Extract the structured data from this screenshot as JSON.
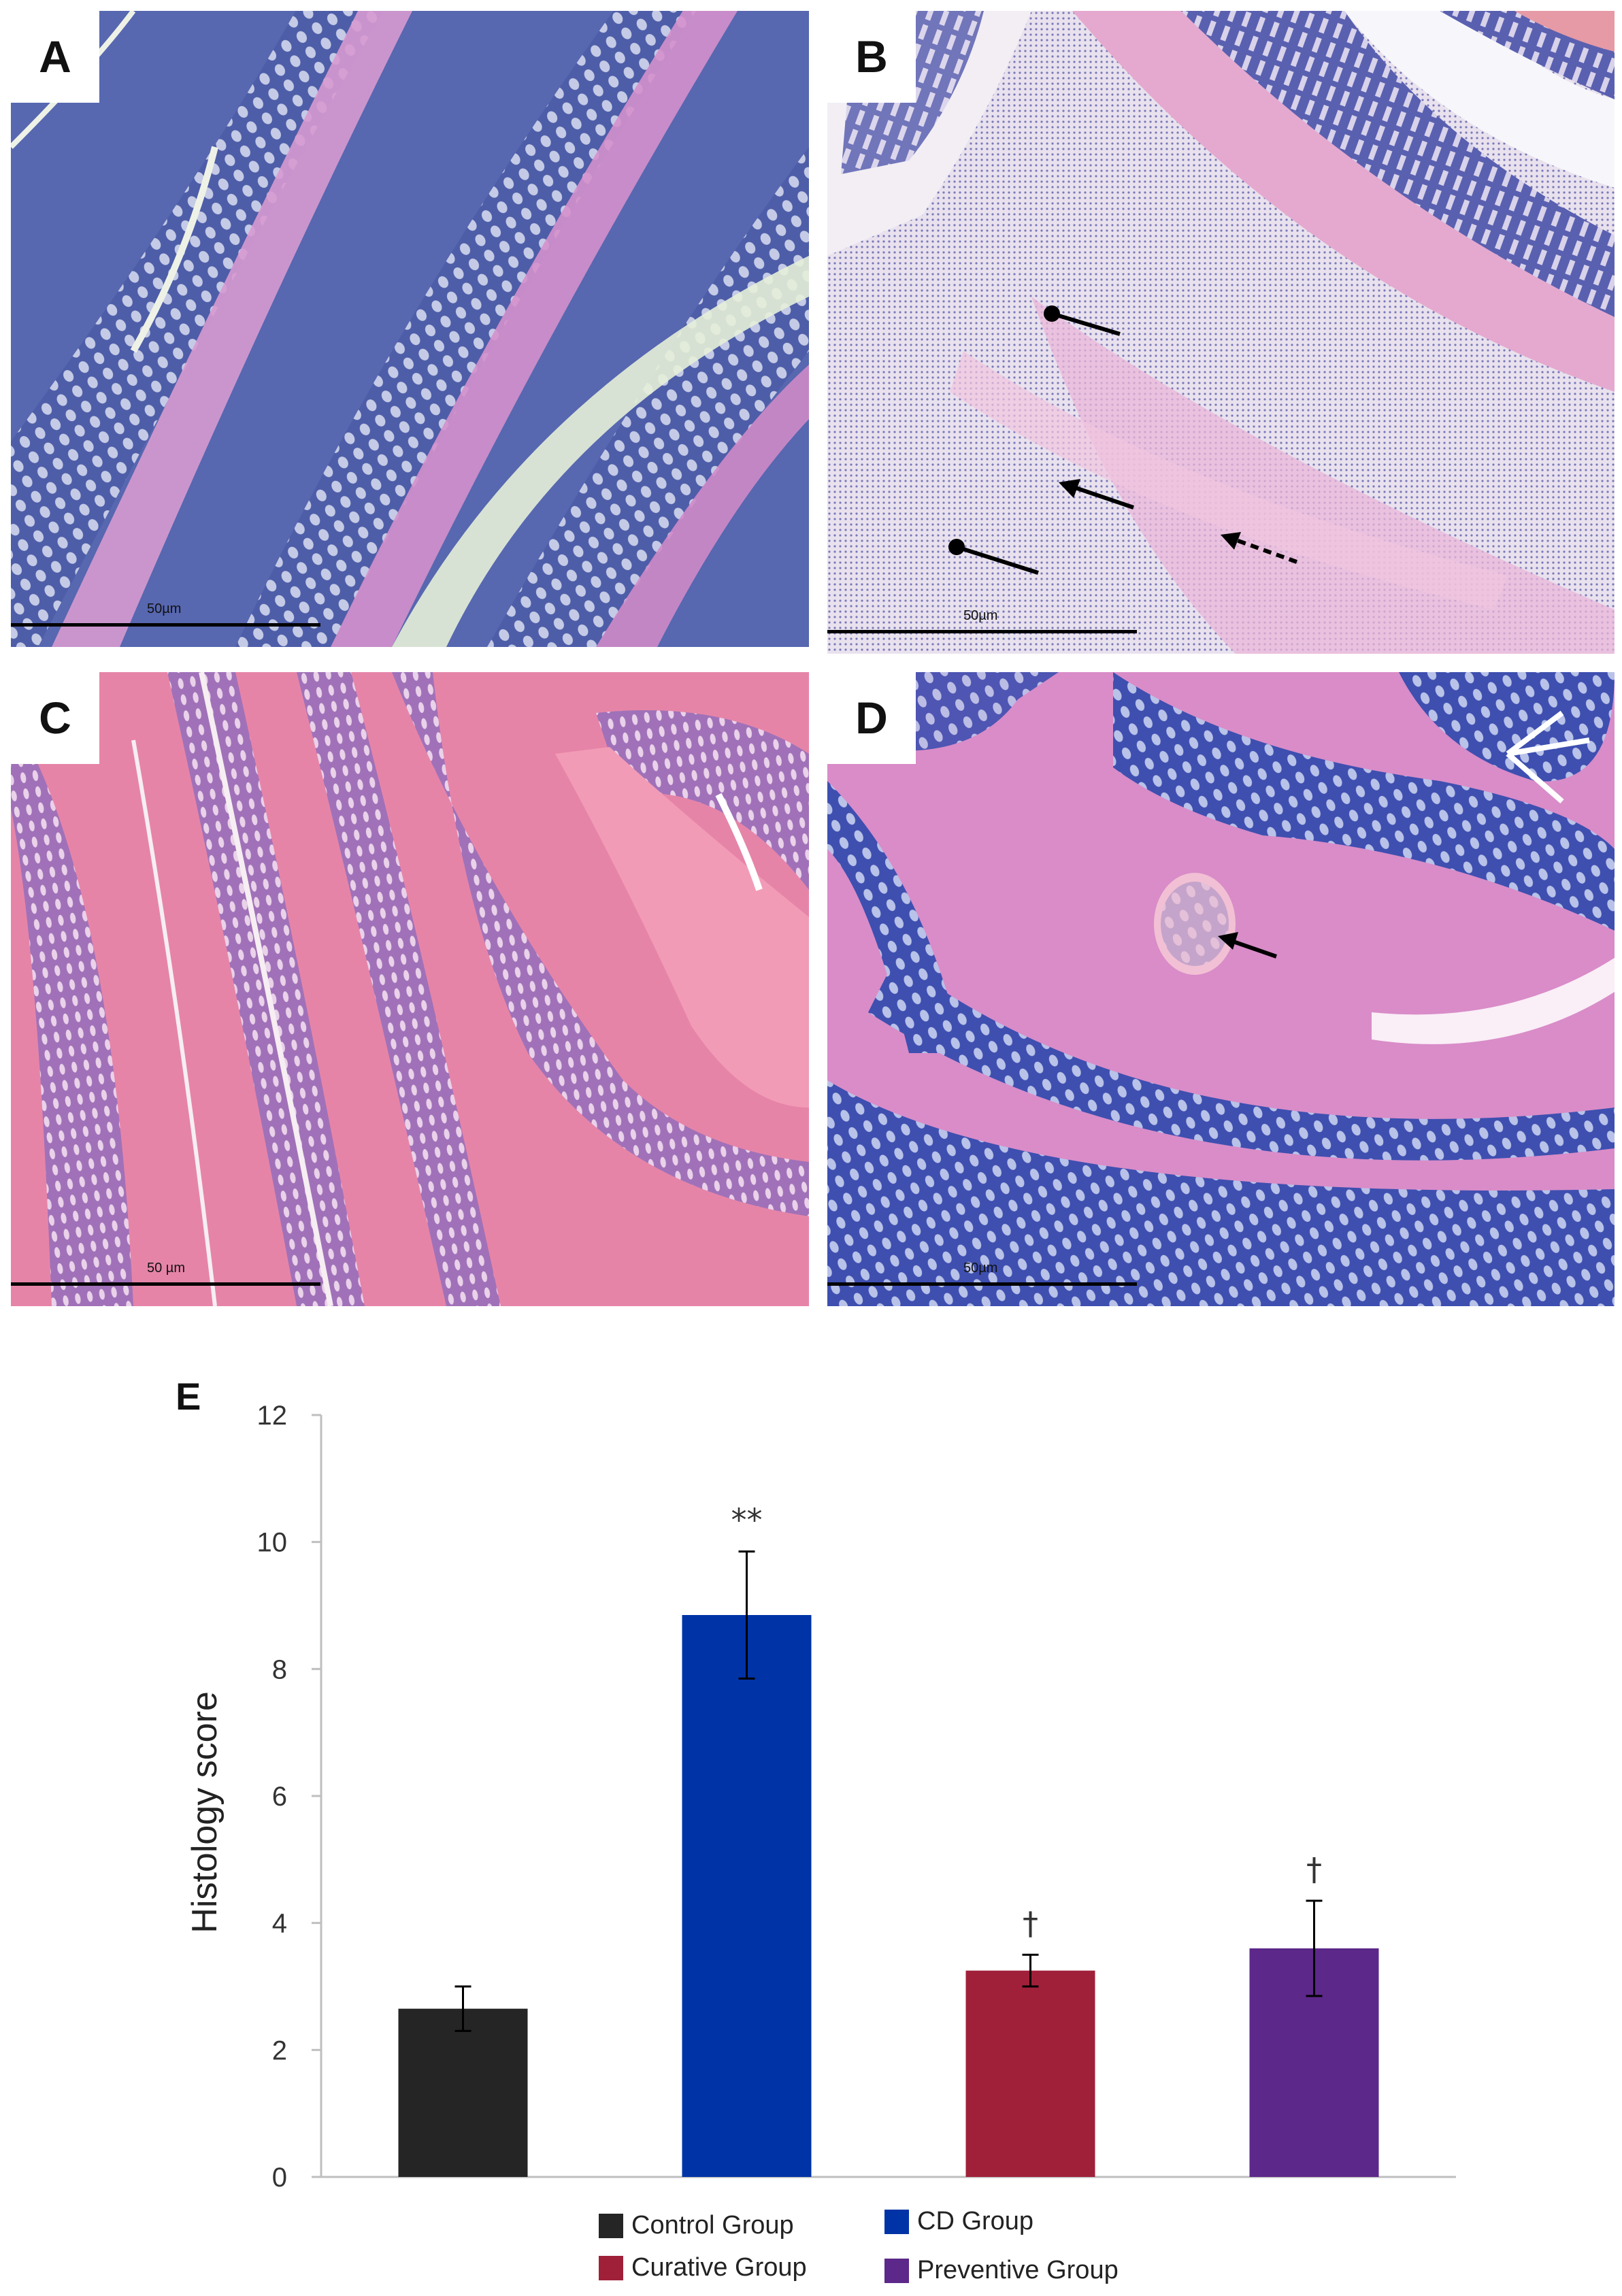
{
  "panels": [
    {
      "id": "A",
      "scale": "50µm"
    },
    {
      "id": "B",
      "scale": "50µm"
    },
    {
      "id": "C",
      "scale": "50 µm"
    },
    {
      "id": "D",
      "scale": "50µm"
    }
  ],
  "chart_label": "E",
  "colors": {
    "control": "#252525",
    "cd": "#0033a6",
    "curative": "#a0203a",
    "preventive": "#5c2889"
  },
  "chart_data": {
    "type": "bar",
    "ylabel": "Histology score",
    "xlabel": "",
    "ylim": [
      0,
      12
    ],
    "yticks": [
      0,
      2,
      4,
      6,
      8,
      10,
      12
    ],
    "grid": false,
    "legend": "bottom",
    "categories": [
      "Control Group",
      "CD Group",
      "Curative Group",
      "Preventive Group"
    ],
    "values": [
      2.65,
      8.85,
      3.25,
      3.6
    ],
    "errors": [
      0.35,
      1.0,
      0.25,
      0.75
    ],
    "annotations": [
      "",
      "**",
      "†",
      "†"
    ]
  }
}
